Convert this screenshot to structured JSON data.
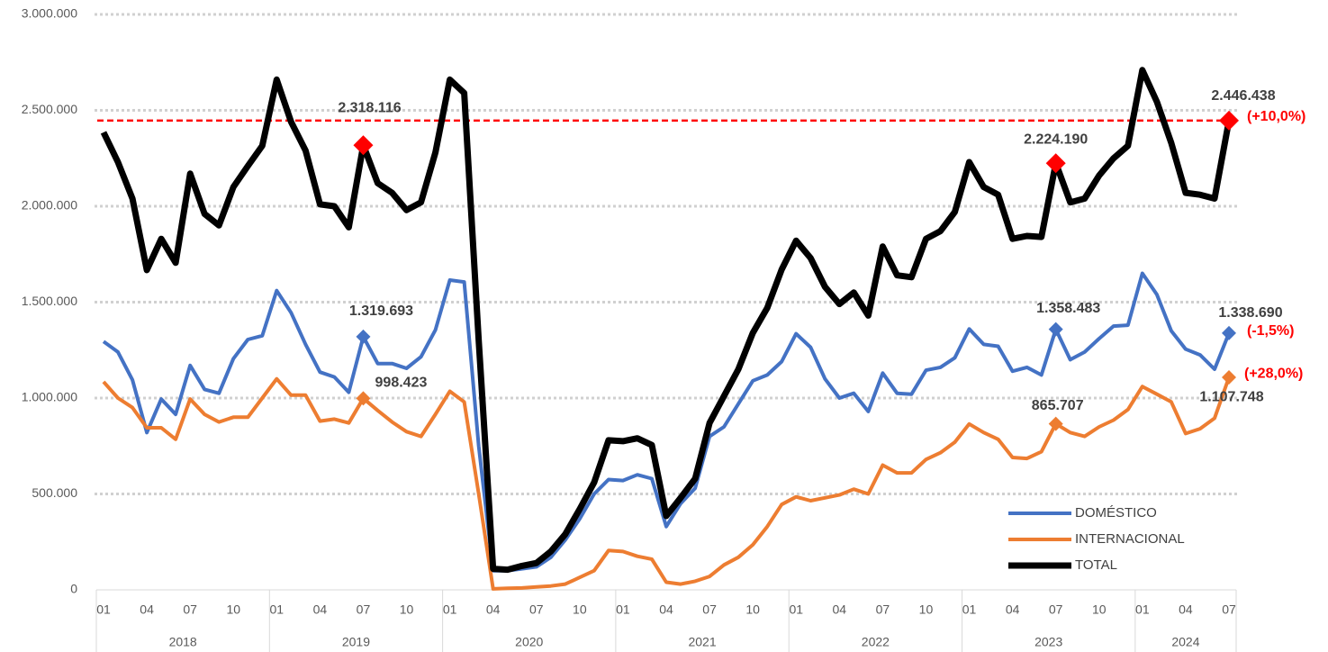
{
  "chart_data": {
    "type": "line",
    "categories": [
      "01",
      null,
      null,
      "04",
      null,
      null,
      "07",
      null,
      null,
      "10",
      null,
      null,
      "01",
      null,
      null,
      "04",
      null,
      null,
      "07",
      null,
      null,
      "10",
      null,
      null,
      "01",
      null,
      null,
      "04",
      null,
      null,
      "07",
      null,
      null,
      "10",
      null,
      null,
      "01",
      null,
      null,
      "04",
      null,
      null,
      "07",
      null,
      null,
      "10",
      null,
      null,
      "01",
      null,
      null,
      "04",
      null,
      null,
      "07",
      null,
      null,
      "10",
      null,
      null,
      "01",
      null,
      null,
      "04",
      null,
      null,
      "07",
      null,
      null,
      "10",
      null,
      null,
      "01",
      null,
      null,
      "04",
      null,
      null,
      "07"
    ],
    "year_labels": [
      "2018",
      "2019",
      "2020",
      "2021",
      "2022",
      "2023",
      "2024"
    ],
    "series": [
      {
        "name": "DOMÉSTICO",
        "color": "#4472c4",
        "values": [
          1295000,
          1240000,
          1095000,
          820000,
          995000,
          915000,
          1170000,
          1045000,
          1025000,
          1205000,
          1305000,
          1325000,
          1560000,
          1445000,
          1280000,
          1135000,
          1110000,
          1030000,
          1319693,
          1180000,
          1180000,
          1155000,
          1215000,
          1355000,
          1615000,
          1605000,
          750000,
          100000,
          100000,
          110000,
          120000,
          170000,
          260000,
          370000,
          500000,
          575000,
          570000,
          600000,
          580000,
          330000,
          450000,
          530000,
          800000,
          850000,
          970000,
          1090000,
          1120000,
          1190000,
          1335000,
          1265000,
          1100000,
          1000000,
          1025000,
          930000,
          1130000,
          1025000,
          1020000,
          1145000,
          1160000,
          1210000,
          1360000,
          1280000,
          1270000,
          1140000,
          1160000,
          1120000,
          1358483,
          1200000,
          1240000,
          1310000,
          1375000,
          1380000,
          1650000,
          1540000,
          1350000,
          1255000,
          1225000,
          1150000,
          1338690
        ],
        "value_labels": [
          null,
          null,
          null,
          null,
          null,
          null,
          null,
          null,
          null,
          null,
          null,
          null,
          null,
          null,
          null,
          null,
          null,
          null,
          "1.319.693",
          null,
          null,
          null,
          null,
          null,
          null,
          null,
          null,
          null,
          null,
          null,
          null,
          null,
          null,
          null,
          null,
          null,
          null,
          null,
          null,
          null,
          null,
          null,
          null,
          null,
          null,
          null,
          null,
          null,
          null,
          null,
          null,
          null,
          null,
          null,
          null,
          null,
          null,
          null,
          null,
          null,
          null,
          null,
          null,
          null,
          null,
          null,
          "1.358.483",
          null,
          null,
          null,
          null,
          null,
          null,
          null,
          null,
          null,
          null,
          null,
          "1.338.690"
        ],
        "change_label": "(-1,5%)"
      },
      {
        "name": "INTERNACIONAL",
        "color": "#ed7d31",
        "values": [
          1085000,
          1000000,
          950000,
          845000,
          845000,
          785000,
          995000,
          915000,
          875000,
          900000,
          900000,
          1000000,
          1100000,
          1015000,
          1015000,
          880000,
          890000,
          870000,
          998423,
          935000,
          875000,
          825000,
          800000,
          915000,
          1035000,
          980000,
          500000,
          5000,
          8000,
          10000,
          15000,
          20000,
          30000,
          65000,
          100000,
          205000,
          200000,
          175000,
          160000,
          40000,
          30000,
          45000,
          70000,
          130000,
          170000,
          235000,
          330000,
          445000,
          485000,
          465000,
          480000,
          495000,
          525000,
          500000,
          650000,
          610000,
          610000,
          680000,
          715000,
          770000,
          865000,
          820000,
          785000,
          690000,
          685000,
          720000,
          865707,
          820000,
          800000,
          850000,
          885000,
          940000,
          1060000,
          1020000,
          980000,
          815000,
          840000,
          895000,
          1107748
        ],
        "value_labels": [
          null,
          null,
          null,
          null,
          null,
          null,
          null,
          null,
          null,
          null,
          null,
          null,
          null,
          null,
          null,
          null,
          null,
          null,
          "998.423",
          null,
          null,
          null,
          null,
          null,
          null,
          null,
          null,
          null,
          null,
          null,
          null,
          null,
          null,
          null,
          null,
          null,
          null,
          null,
          null,
          null,
          null,
          null,
          null,
          null,
          null,
          null,
          null,
          null,
          null,
          null,
          null,
          null,
          null,
          null,
          null,
          null,
          null,
          null,
          null,
          null,
          null,
          null,
          null,
          null,
          null,
          null,
          "865.707",
          null,
          null,
          null,
          null,
          null,
          null,
          null,
          null,
          null,
          null,
          null,
          "1.107.748"
        ],
        "change_label": "(+28,0%)"
      },
      {
        "name": "TOTAL",
        "color": "#000000",
        "values": [
          2385000,
          2230000,
          2040000,
          1667000,
          1830000,
          1705000,
          2170000,
          1960000,
          1900000,
          2100000,
          2210000,
          2315000,
          2660000,
          2440000,
          2290000,
          2010000,
          2000000,
          1890000,
          2318116,
          2120000,
          2070000,
          1980000,
          2020000,
          2280000,
          2660000,
          2590000,
          1300000,
          110000,
          105000,
          125000,
          140000,
          200000,
          290000,
          420000,
          560000,
          780000,
          775000,
          790000,
          755000,
          385000,
          480000,
          580000,
          870000,
          1010000,
          1150000,
          1340000,
          1470000,
          1670000,
          1820000,
          1730000,
          1580000,
          1490000,
          1550000,
          1430000,
          1790000,
          1640000,
          1630000,
          1830000,
          1870000,
          1970000,
          2230000,
          2100000,
          2060000,
          1830000,
          1845000,
          1840000,
          2224190,
          2020000,
          2040000,
          2160000,
          2250000,
          2315000,
          2710000,
          2545000,
          2330000,
          2070000,
          2060000,
          2040000,
          2446438
        ],
        "value_labels": [
          null,
          null,
          null,
          null,
          null,
          null,
          null,
          null,
          null,
          null,
          null,
          null,
          null,
          null,
          null,
          null,
          null,
          null,
          "2.318.116",
          null,
          null,
          null,
          null,
          null,
          null,
          null,
          null,
          null,
          null,
          null,
          null,
          null,
          null,
          null,
          null,
          null,
          null,
          null,
          null,
          null,
          null,
          null,
          null,
          null,
          null,
          null,
          null,
          null,
          null,
          null,
          null,
          null,
          null,
          null,
          null,
          null,
          null,
          null,
          null,
          null,
          null,
          null,
          null,
          null,
          null,
          null,
          "2.224.190",
          null,
          null,
          null,
          null,
          null,
          null,
          null,
          null,
          null,
          null,
          null,
          "2.446.438"
        ],
        "change_label": "(+10,0%)"
      }
    ],
    "ylim": [
      0,
      3000000
    ],
    "yticks": [
      0,
      {
        "value": 500000,
        "label": "500.000"
      },
      {
        "value": 1000000,
        "label": "1.000.000"
      },
      {
        "value": 1500000,
        "label": "1.500.000"
      },
      {
        "value": 2000000,
        "label": "2.000.000"
      },
      {
        "value": 2500000,
        "label": "2.500.000"
      },
      {
        "value": 3000000,
        "label": "3.000.000"
      }
    ],
    "grid": true,
    "reference_line": {
      "value": 2446438,
      "color": "#ff0000"
    },
    "marker_color": "#ff0000",
    "legend": "lower right"
  }
}
